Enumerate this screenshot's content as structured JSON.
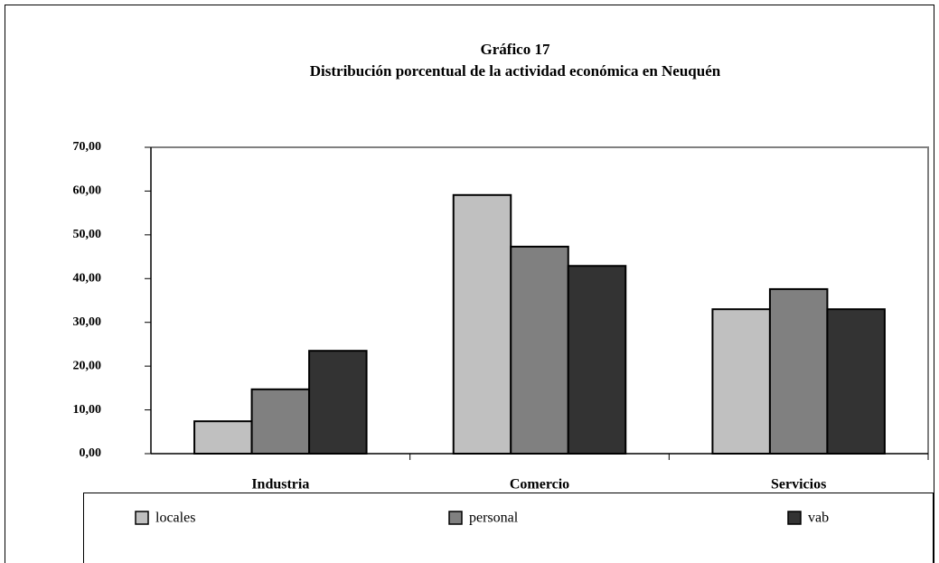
{
  "chart_data": {
    "type": "bar",
    "title": "Gráfico 17",
    "subtitle": "Distribución porcentual de la actividad económica en Neuquén",
    "categories": [
      "Industria",
      "Comercio",
      "Servicios"
    ],
    "series": [
      {
        "name": "locales",
        "color": "#c0c0c0",
        "values": [
          7.4,
          59.1,
          33.0
        ]
      },
      {
        "name": "personal",
        "color": "#808080",
        "values": [
          14.7,
          47.3,
          37.6
        ]
      },
      {
        "name": "vab",
        "color": "#333333",
        "values": [
          23.5,
          42.9,
          33.0
        ]
      }
    ],
    "ylim": [
      0,
      70
    ],
    "yticks": [
      {
        "value": 0,
        "label": "0,00"
      },
      {
        "value": 10,
        "label": "10,00"
      },
      {
        "value": 20,
        "label": "20,00"
      },
      {
        "value": 30,
        "label": "30,00"
      },
      {
        "value": 40,
        "label": "40,00"
      },
      {
        "value": 50,
        "label": "50,00"
      },
      {
        "value": 60,
        "label": "60,00"
      },
      {
        "value": 70,
        "label": "70,00"
      }
    ],
    "grid": false,
    "legend": "bottom"
  }
}
